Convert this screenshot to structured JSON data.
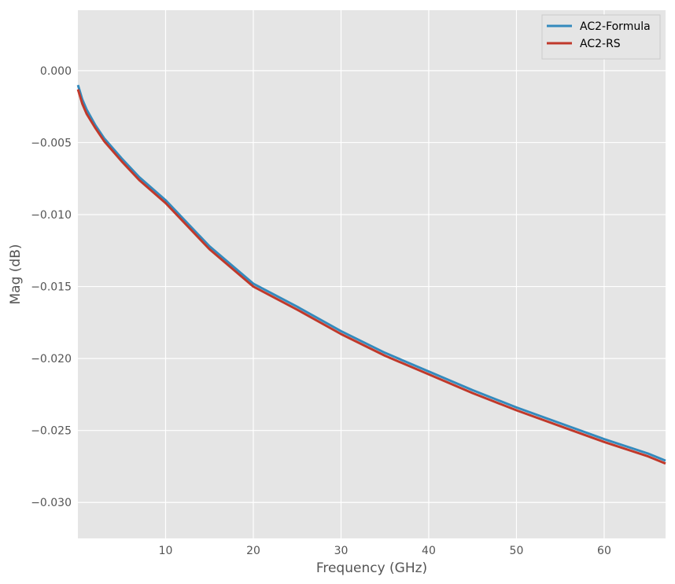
{
  "chart_data": {
    "type": "line",
    "title": "",
    "xlabel": "Frequency (GHz)",
    "ylabel": "Mag (dB)",
    "xlim": [
      0,
      67
    ],
    "ylim": [
      -0.0325,
      0.0042
    ],
    "xticks": [
      10,
      20,
      30,
      40,
      50,
      60
    ],
    "xtick_labels": [
      "10",
      "20",
      "30",
      "40",
      "50",
      "60"
    ],
    "yticks": [
      0.0,
      -0.005,
      -0.01,
      -0.015,
      -0.02,
      -0.025,
      -0.03
    ],
    "ytick_labels": [
      "0.000",
      "−0.005",
      "−0.010",
      "−0.015",
      "−0.020",
      "−0.025",
      "−0.030"
    ],
    "grid": true,
    "legend_position": "top-right",
    "series": [
      {
        "name": "AC2-Formula",
        "color": "#348ABD",
        "x": [
          0.01,
          0.5,
          1,
          2,
          3,
          5,
          7,
          10,
          15,
          20,
          25,
          30,
          35,
          40,
          45,
          50,
          55,
          60,
          65,
          67
        ],
        "y": [
          -0.001,
          -0.002,
          -0.0027,
          -0.0038,
          -0.0047,
          -0.0061,
          -0.0074,
          -0.009,
          -0.0122,
          -0.0148,
          -0.0164,
          -0.0181,
          -0.0196,
          -0.0209,
          -0.0222,
          -0.0234,
          -0.0245,
          -0.0256,
          -0.0266,
          -0.0271
        ]
      },
      {
        "name": "AC2-RS",
        "color": "#C0392B",
        "x": [
          0.01,
          0.5,
          1,
          2,
          3,
          5,
          7,
          10,
          15,
          20,
          25,
          30,
          35,
          40,
          45,
          50,
          55,
          60,
          65,
          67
        ],
        "y": [
          -0.0013,
          -0.0023,
          -0.003,
          -0.004,
          -0.0049,
          -0.0063,
          -0.0076,
          -0.0092,
          -0.0124,
          -0.015,
          -0.0166,
          -0.0183,
          -0.0198,
          -0.0211,
          -0.0224,
          -0.0236,
          -0.0247,
          -0.0258,
          -0.0268,
          -0.0273
        ]
      }
    ]
  }
}
